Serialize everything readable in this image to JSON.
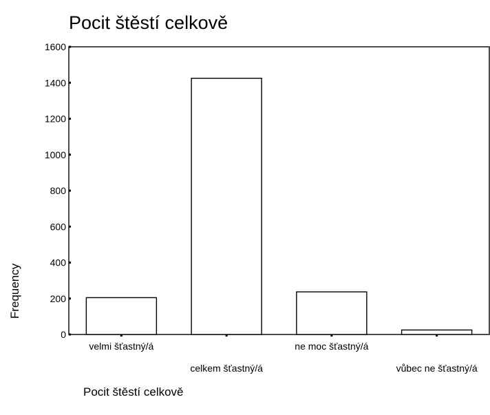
{
  "chart_data": {
    "type": "bar",
    "title": "Pocit štěstí celkově",
    "xlabel": "Pocit štěstí celkově",
    "ylabel": "Frequency",
    "categories": [
      "velmi šťastný/á",
      "celkem šťastný/á",
      "ne moc šťastný/á",
      "vůbec ne šťastný/á"
    ],
    "values": [
      205,
      1425,
      237,
      25
    ],
    "ylim": [
      0,
      1600
    ],
    "yticks": [
      0,
      200,
      400,
      600,
      800,
      1000,
      1200,
      1400,
      1600
    ],
    "grid": false,
    "legend": "none",
    "bar_fill": "#ffffff",
    "bar_stroke": "#000000"
  }
}
